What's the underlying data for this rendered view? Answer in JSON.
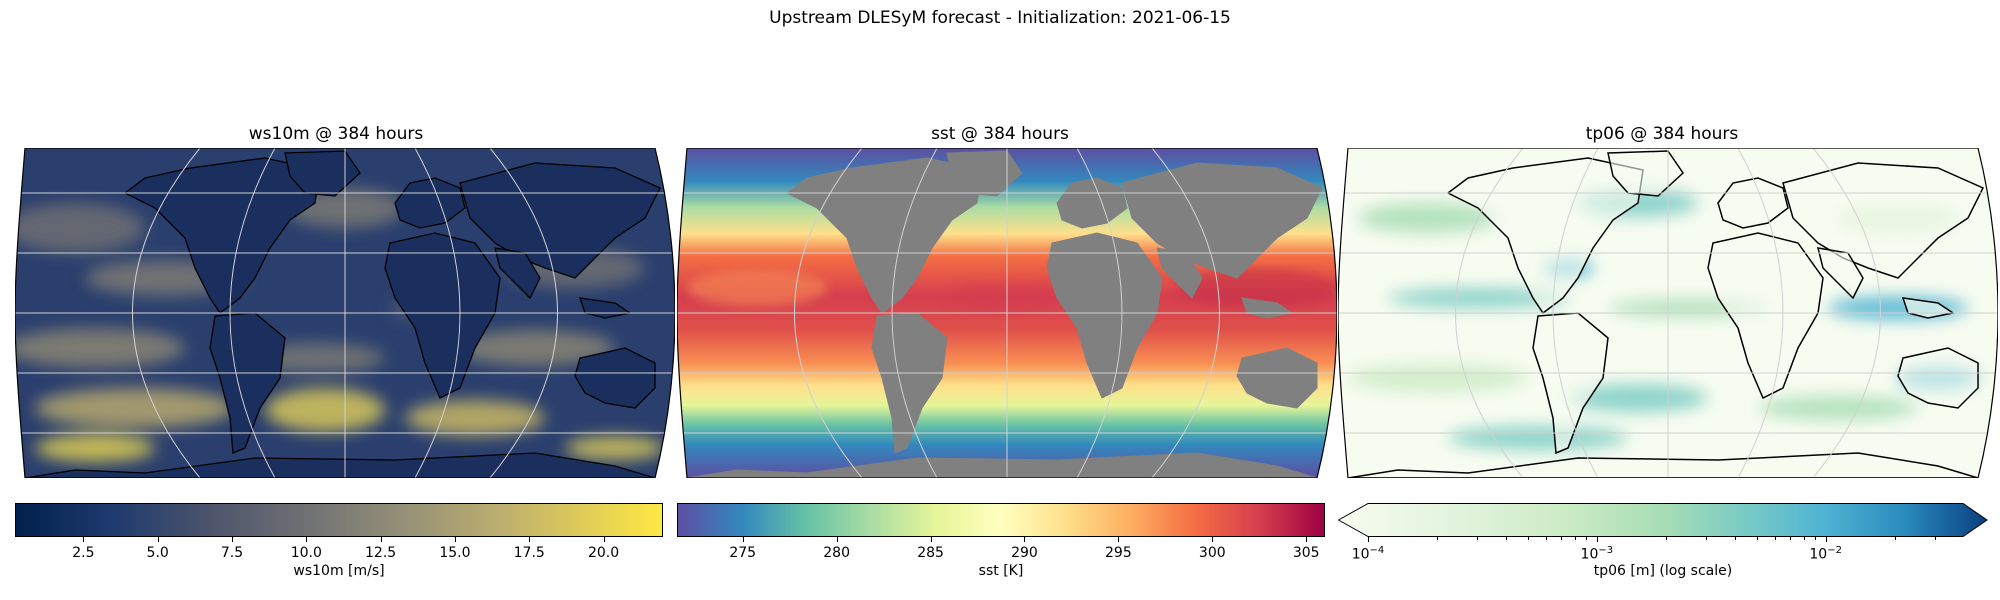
{
  "figure": {
    "title": "Upstream DLESyM forecast - Initialization: 2021-06-15"
  },
  "panels": [
    {
      "title": "ws10m @ 384 hours",
      "colorbar_label": "ws10m [m/s]",
      "colormap": "cividis",
      "range": [
        0.2,
        22
      ],
      "ticks": [
        "2.5",
        "5.0",
        "7.5",
        "10.0",
        "12.5",
        "15.0",
        "17.5",
        "20.0"
      ],
      "tick_values": [
        2.5,
        5.0,
        7.5,
        10.0,
        12.5,
        15.0,
        17.5,
        20.0
      ],
      "colors": {
        "land_outline": "#000000",
        "low": "#00204d",
        "mid": "#7c7b78",
        "high": "#ffe945"
      }
    },
    {
      "title": "sst @ 384 hours",
      "colorbar_label": "sst [K]",
      "colormap": "Spectral_r",
      "range": [
        271.5,
        306
      ],
      "ticks": [
        "275",
        "280",
        "285",
        "290",
        "295",
        "300",
        "305"
      ],
      "tick_values": [
        275,
        280,
        285,
        290,
        295,
        300,
        305
      ],
      "colors": {
        "land": "#808080",
        "cold": "#5e4fa2",
        "warm": "#9e0142"
      }
    },
    {
      "title": "tp06 @ 384 hours",
      "colorbar_label": "tp06 [m] (log scale)",
      "colormap": "GnBu",
      "scale": "log",
      "range_exponents": [
        -4,
        -1.4
      ],
      "ticks": [
        "10",
        "10",
        "10"
      ],
      "tick_exponents": [
        "−4",
        "−3",
        "−2"
      ],
      "tick_values": [
        -4,
        -3,
        -2
      ],
      "extend": "max",
      "colors": {
        "land_outline": "#000000",
        "low": "#f7fcf0",
        "high": "#084081"
      }
    }
  ]
}
